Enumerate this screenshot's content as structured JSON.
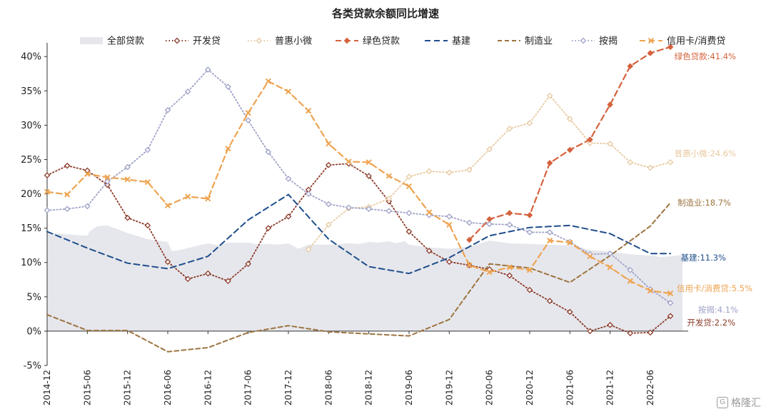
{
  "watermark": {
    "text": "格隆汇",
    "icon": "G"
  },
  "chart_data": {
    "type": "line",
    "title": "各类贷款余额同比增速",
    "xlabel": "",
    "ylabel": "",
    "ylim": [
      -5,
      42
    ],
    "yticks": [
      "-5%",
      "0%",
      "5%",
      "10%",
      "15%",
      "20%",
      "25%",
      "30%",
      "35%",
      "40%"
    ],
    "ytick_values": [
      -5,
      0,
      5,
      10,
      15,
      20,
      25,
      30,
      35,
      40
    ],
    "xlim": [
      0,
      31.6
    ],
    "xticks": [
      "2014-12",
      "2015-06",
      "2015-12",
      "2016-06",
      "2016-12",
      "2017-06",
      "2017-12",
      "2018-06",
      "2018-12",
      "2019-06",
      "2019-12",
      "2020-06",
      "2020-12",
      "2021-06",
      "2021-12",
      "2022-06"
    ],
    "xtick_quarters": [
      0,
      2,
      4,
      6,
      8,
      10,
      12,
      14,
      16,
      18,
      20,
      22,
      24,
      26,
      28,
      30
    ],
    "grid": false,
    "legend_position": "top",
    "area": {
      "name": "全部贷款",
      "color": "#e6e7ec",
      "x": [
        0,
        1,
        2,
        2.1,
        2.5,
        3,
        4,
        5,
        6,
        6.2,
        6.6,
        7,
        8,
        8.5,
        9,
        10,
        10.5,
        11,
        11.5,
        12,
        12.5,
        13,
        14,
        15,
        15.5,
        16,
        16.5,
        17,
        17.3,
        17.8,
        18,
        19,
        20,
        21,
        22,
        23,
        24,
        25,
        26,
        26.5,
        27,
        28,
        29,
        30,
        30.5,
        31,
        31.6
      ],
      "y": [
        14.4,
        14.1,
        13.9,
        14.5,
        15.3,
        15.4,
        14.3,
        13.4,
        13.0,
        11.7,
        11.8,
        12.1,
        12.8,
        12.5,
        12.9,
        12.9,
        12.6,
        12.7,
        12.6,
        12.8,
        12.0,
        12.6,
        12.6,
        12.8,
        12.7,
        13.0,
        12.9,
        13.1,
        12.8,
        13.1,
        12.6,
        12.2,
        12.0,
        12.3,
        13.2,
        12.8,
        12.7,
        12.6,
        12.5,
        12.2,
        11.8,
        11.6,
        11.2,
        11.0,
        10.8,
        10.9,
        11.1
      ]
    },
    "series": [
      {
        "name": "开发贷",
        "color": "#8b3b2a",
        "dash": "1.5 3",
        "marker": "diamond-open",
        "x": [
          0,
          1,
          2,
          3,
          4,
          5,
          6,
          7,
          8,
          9,
          10,
          11,
          12,
          13,
          14,
          15,
          16,
          17,
          18,
          19,
          20,
          21,
          22,
          23,
          24,
          25,
          26,
          27,
          28,
          29,
          30,
          31
        ],
        "y": [
          22.7,
          24.1,
          23.4,
          21.3,
          16.5,
          15.4,
          10.1,
          7.6,
          8.4,
          7.3,
          9.8,
          15.0,
          16.7,
          20.6,
          24.2,
          24.4,
          22.6,
          18.9,
          14.5,
          11.7,
          10.1,
          9.6,
          9.0,
          8.1,
          6.0,
          4.4,
          2.8,
          0.0,
          0.9,
          -0.3,
          -0.2,
          2.2
        ],
        "end_label": "开发贷:2.2%"
      },
      {
        "name": "普惠小微",
        "color": "#e8c9a0",
        "dash": "1.5 3",
        "marker": "diamond-open",
        "x": [
          13,
          14,
          15,
          16,
          17,
          18,
          19,
          20,
          21,
          22,
          23,
          24,
          25,
          26,
          27,
          28,
          29,
          30,
          31
        ],
        "y": [
          11.9,
          15.5,
          17.9,
          18.1,
          19.3,
          22.5,
          23.3,
          23.1,
          23.5,
          26.5,
          29.5,
          30.3,
          34.3,
          30.9,
          27.4,
          27.3,
          24.6,
          23.8,
          24.6
        ],
        "end_label": "普惠小微:24.6%"
      },
      {
        "name": "绿色贷款",
        "color": "#d5623d",
        "dash": "8 5",
        "marker": "diamond-filled",
        "x": [
          21,
          22,
          23,
          24,
          25,
          26,
          27,
          28,
          29,
          30,
          31
        ],
        "y": [
          13.3,
          16.3,
          17.2,
          16.9,
          24.5,
          26.4,
          27.9,
          33.0,
          38.6,
          40.5,
          41.4
        ],
        "end_label": "绿色贷款:41.4%"
      },
      {
        "name": "基建",
        "color": "#1f4e8c",
        "dash": "8 5",
        "marker": "none",
        "x": [
          0,
          2,
          4,
          6,
          8,
          10,
          12,
          14,
          16,
          18,
          20,
          22,
          24,
          26,
          28,
          30,
          31
        ],
        "y": [
          14.5,
          12.1,
          9.9,
          9.1,
          10.9,
          16.2,
          19.9,
          13.4,
          9.4,
          8.4,
          10.7,
          13.9,
          15.1,
          15.4,
          14.2,
          11.3,
          11.3
        ],
        "end_label": "基建:11.3%"
      },
      {
        "name": "制造业",
        "color": "#9c7440",
        "dash": "6 4",
        "marker": "none",
        "x": [
          0,
          2,
          4,
          6,
          8,
          10,
          12,
          14,
          16,
          18,
          20,
          22,
          24,
          26,
          28,
          30,
          31
        ],
        "y": [
          2.4,
          0.1,
          0.1,
          -3.0,
          -2.4,
          -0.2,
          0.8,
          -0.1,
          -0.4,
          -0.7,
          1.7,
          9.8,
          9.2,
          7.1,
          11.0,
          15.3,
          18.7
        ],
        "end_label": "制造业:18.7%"
      },
      {
        "name": "按揭",
        "color": "#9ea2c8",
        "dash": "1.5 3",
        "marker": "diamond-open",
        "x": [
          0,
          1,
          2,
          3,
          4,
          5,
          6,
          7,
          8,
          9,
          10,
          11,
          12,
          13,
          14,
          15,
          16,
          17,
          18,
          19,
          20,
          21,
          22,
          23,
          24,
          25,
          26,
          27,
          28,
          29,
          30,
          31
        ],
        "y": [
          17.6,
          17.8,
          18.2,
          21.8,
          23.9,
          26.4,
          32.2,
          34.9,
          38.1,
          35.6,
          30.7,
          26.1,
          22.2,
          20.0,
          18.5,
          18.0,
          17.8,
          17.5,
          17.2,
          16.9,
          16.7,
          15.8,
          15.6,
          15.5,
          14.4,
          14.4,
          13.0,
          11.2,
          11.3,
          8.9,
          6.1,
          4.1
        ],
        "end_label": "按揭:4.1%"
      },
      {
        "name": "信用卡/消费贷",
        "color": "#eea452",
        "dash": "8 5",
        "marker": "x",
        "x": [
          0,
          1,
          2,
          3,
          4,
          5,
          6,
          7,
          8,
          9,
          10,
          11,
          12,
          13,
          14,
          15,
          16,
          17,
          18,
          19,
          20,
          21,
          22,
          23,
          24,
          25,
          26,
          27,
          28,
          29,
          30,
          31
        ],
        "y": [
          20.3,
          19.9,
          22.9,
          22.4,
          22.1,
          21.7,
          18.3,
          19.6,
          19.3,
          26.6,
          31.8,
          36.4,
          34.9,
          32.1,
          27.3,
          24.7,
          24.6,
          22.6,
          21.1,
          17.3,
          15.5,
          9.6,
          8.6,
          9.3,
          8.9,
          13.2,
          12.9,
          10.9,
          9.3,
          7.3,
          5.9,
          5.5
        ],
        "end_label": "信用卡/消费贷:5.5%"
      }
    ]
  }
}
